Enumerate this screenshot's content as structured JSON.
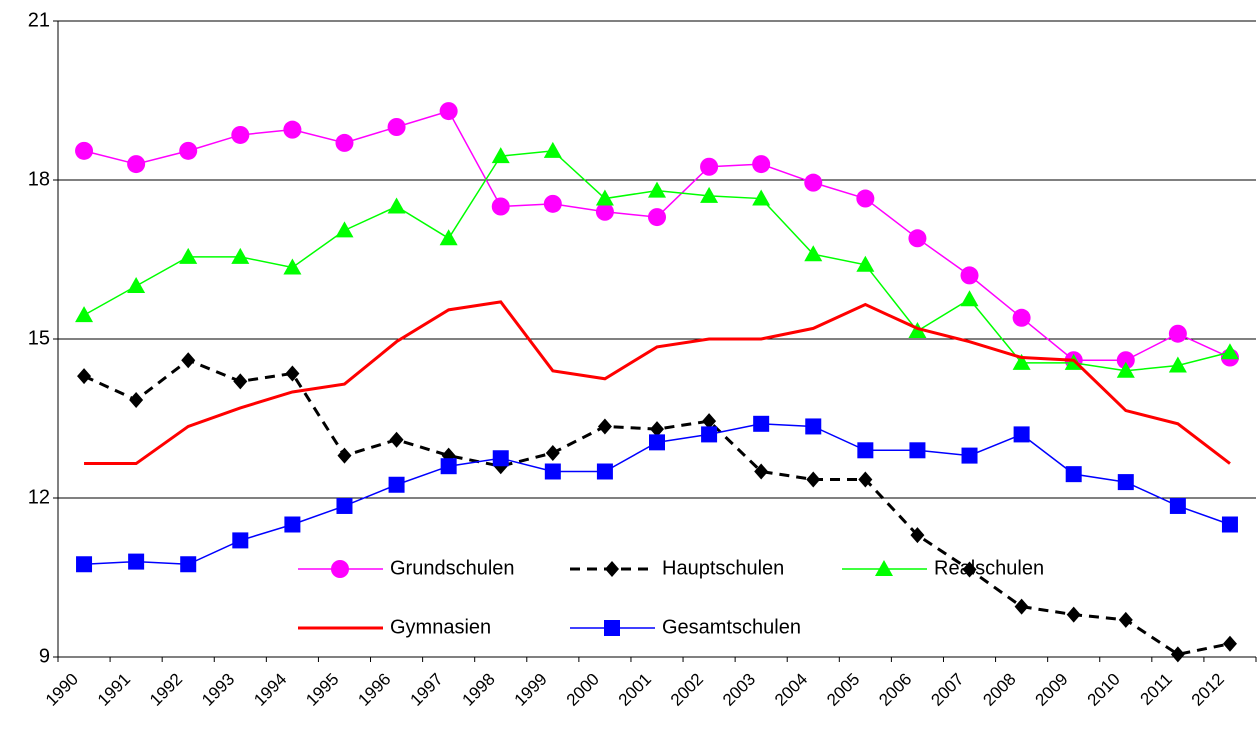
{
  "chart_data": {
    "type": "line",
    "categories": [
      "1990",
      "1991",
      "1992",
      "1993",
      "1994",
      "1995",
      "1996",
      "1997",
      "1998",
      "1999",
      "2000",
      "2001",
      "2002",
      "2003",
      "2004",
      "2005",
      "2006",
      "2007",
      "2008",
      "2009",
      "2010",
      "2011",
      "2012"
    ],
    "series": [
      {
        "name": "Grundschulen",
        "color": "#ff00ff",
        "marker": "circle",
        "dash": false,
        "width": 1.5,
        "values": [
          18.55,
          18.3,
          18.55,
          18.85,
          18.95,
          18.7,
          19.0,
          19.3,
          17.5,
          17.55,
          17.4,
          17.3,
          18.25,
          18.3,
          17.95,
          17.65,
          16.9,
          16.2,
          15.4,
          14.6,
          14.6,
          15.1,
          14.65
        ]
      },
      {
        "name": "Hauptschulen",
        "color": "#000000",
        "marker": "diamond",
        "dash": true,
        "width": 3,
        "values": [
          14.3,
          13.85,
          14.6,
          14.2,
          14.35,
          12.8,
          13.1,
          12.8,
          12.6,
          12.85,
          13.35,
          13.3,
          13.45,
          12.5,
          12.35,
          12.35,
          11.3,
          10.65,
          9.95,
          9.8,
          9.7,
          9.05,
          9.25
        ]
      },
      {
        "name": "Realschulen",
        "color": "#00ff00",
        "marker": "triangle",
        "dash": false,
        "width": 1.5,
        "values": [
          15.45,
          16.0,
          16.55,
          16.55,
          16.35,
          17.05,
          17.5,
          16.9,
          18.45,
          18.55,
          17.65,
          17.8,
          17.7,
          17.65,
          16.6,
          16.4,
          15.15,
          15.75,
          14.55,
          14.55,
          14.4,
          14.5,
          14.75
        ]
      },
      {
        "name": "Gymnasien",
        "color": "#ff0000",
        "marker": "none",
        "dash": false,
        "width": 3,
        "values": [
          12.65,
          12.65,
          13.35,
          13.7,
          14.0,
          14.15,
          14.95,
          15.55,
          15.7,
          14.4,
          14.25,
          14.85,
          15.0,
          15.0,
          15.2,
          15.65,
          15.2,
          14.95,
          14.65,
          14.6,
          13.65,
          13.4,
          12.65
        ]
      },
      {
        "name": "Gesamtschulen",
        "color": "#0000ff",
        "marker": "square",
        "dash": false,
        "width": 1.5,
        "values": [
          10.75,
          10.8,
          10.75,
          11.2,
          11.5,
          11.85,
          12.25,
          12.6,
          12.75,
          12.5,
          12.5,
          13.05,
          13.2,
          13.4,
          13.35,
          12.9,
          12.9,
          12.8,
          13.2,
          12.45,
          12.3,
          11.85,
          11.5
        ]
      }
    ],
    "ylim": [
      9,
      21
    ],
    "yticks": [
      9,
      12,
      15,
      18,
      21
    ],
    "grid": true
  }
}
